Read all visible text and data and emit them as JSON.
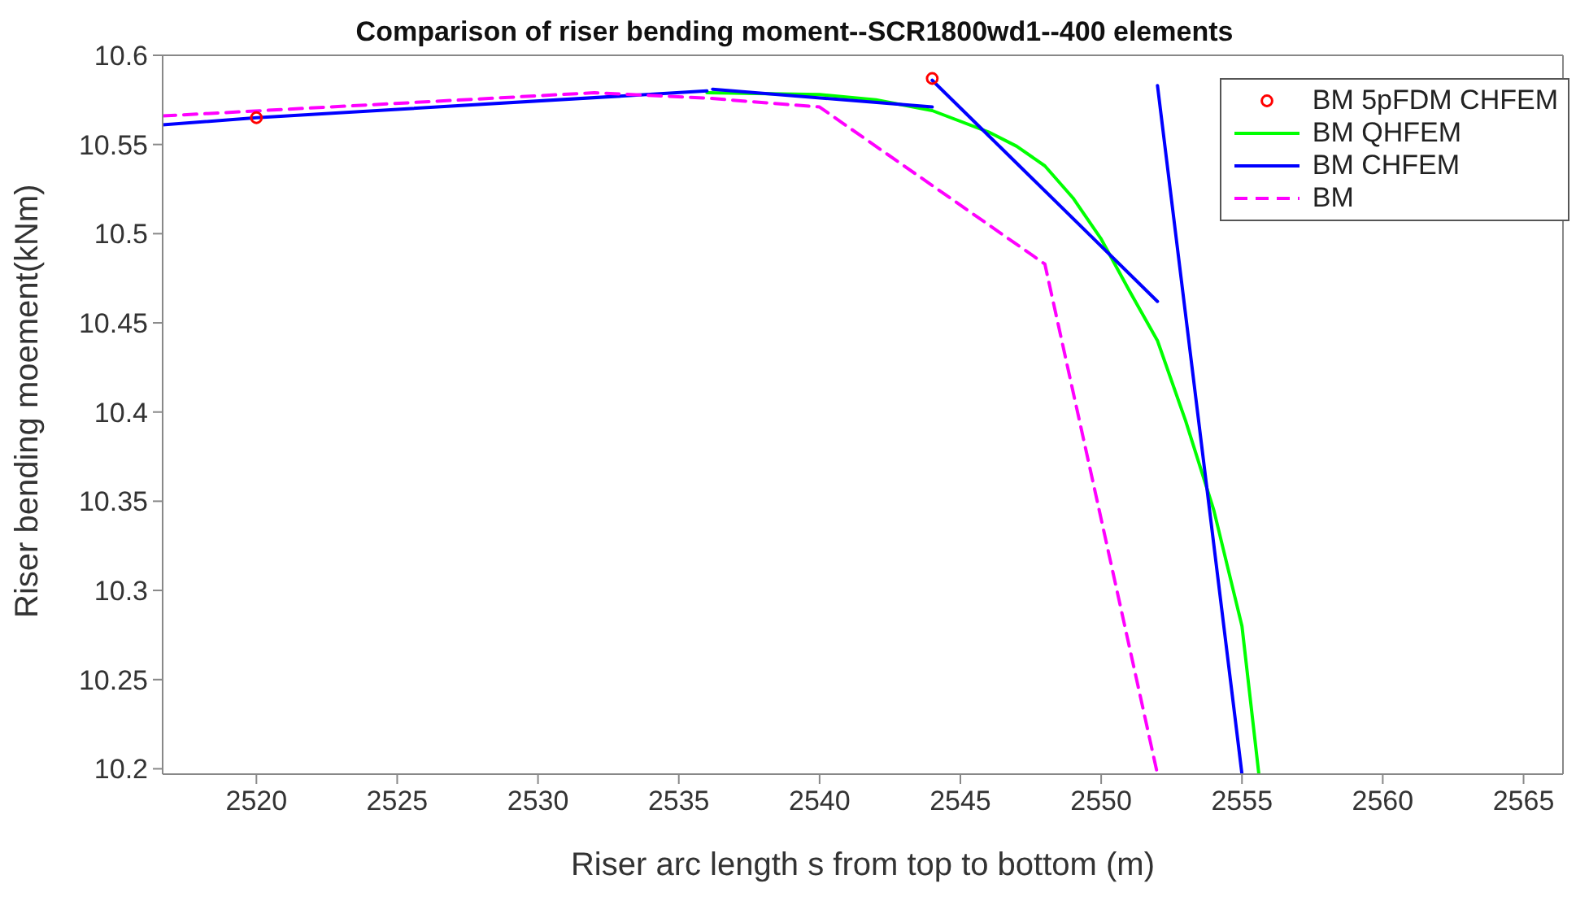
{
  "chart_data": {
    "type": "line",
    "title": "Comparison of riser bending moment--SCR1800wd1--400 elements",
    "xlabel": "Riser arc length s from top to bottom (m)",
    "ylabel": "Riser bending moement(kNm)",
    "xlim": [
      2516.67,
      2566.4
    ],
    "ylim": [
      10.197,
      10.6
    ],
    "xticks": [
      2520,
      2525,
      2530,
      2535,
      2540,
      2545,
      2550,
      2555,
      2560,
      2565
    ],
    "yticks": [
      10.2,
      10.25,
      10.3,
      10.35,
      10.4,
      10.45,
      10.5,
      10.55,
      10.6
    ],
    "legend": "top right",
    "series": [
      {
        "name": "BM 5pFDM CHFEM",
        "type": "scatter",
        "marker": "circle",
        "color": "#ff0000",
        "x": [
          2520,
          2544
        ],
        "values": [
          10.565,
          10.587
        ]
      },
      {
        "name": "BM QHFEM",
        "color": "#00ff00",
        "x": [
          2536,
          2540,
          2542,
          2544,
          2546,
          2547,
          2548,
          2549,
          2550,
          2551,
          2552,
          2553,
          2554,
          2555,
          2555.6
        ],
        "values": [
          10.579,
          10.578,
          10.575,
          10.569,
          10.557,
          10.549,
          10.538,
          10.52,
          10.497,
          10.468,
          10.44,
          10.395,
          10.345,
          10.28,
          10.197
        ]
      },
      {
        "name": "BM CHFEM",
        "color": "#0000ff",
        "x": [
          2516.67,
          2520,
          2536
        ],
        "values": [
          10.561,
          10.565,
          10.58
        ]
      },
      {
        "color": "#0000ff",
        "x": [
          2536.2,
          2544
        ],
        "values": [
          10.581,
          10.571
        ]
      },
      {
        "color": "#0000ff",
        "x": [
          2544,
          2552
        ],
        "values": [
          10.586,
          10.462
        ]
      },
      {
        "color": "#0000ff",
        "x": [
          2552,
          2555
        ],
        "values": [
          10.583,
          10.197
        ]
      },
      {
        "name": "BM",
        "line_style": "dashed",
        "color": "#ff00ff",
        "x": [
          2516.67,
          2532,
          2536,
          2540,
          2548,
          2552
        ],
        "values": [
          10.566,
          10.579,
          10.576,
          10.571,
          10.483,
          10.197
        ]
      }
    ]
  }
}
